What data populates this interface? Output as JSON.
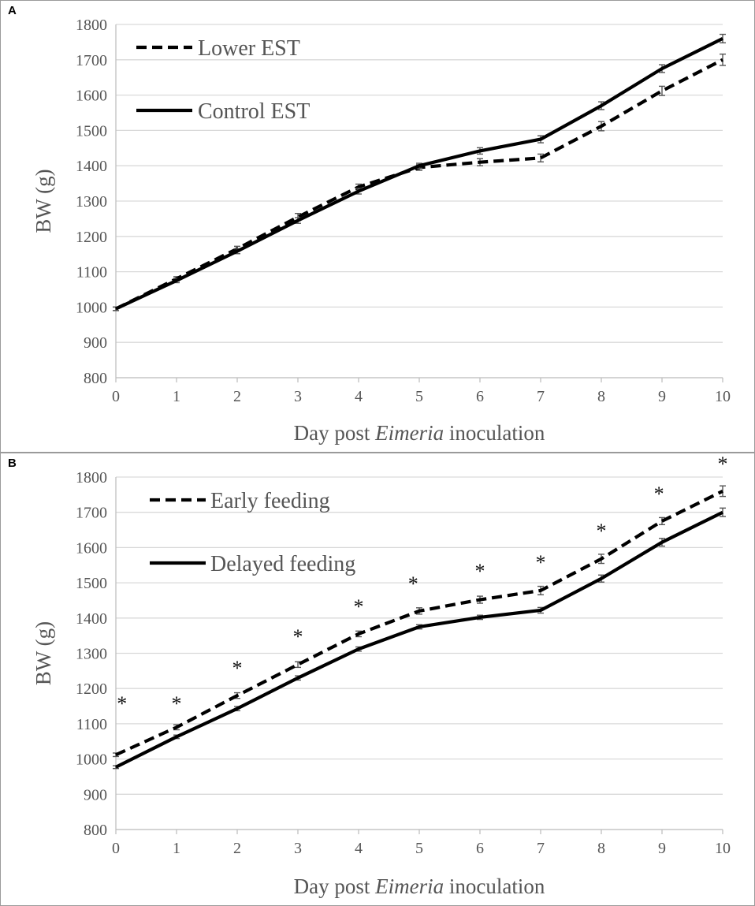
{
  "figure": {
    "colors": {
      "line": "#000000",
      "grid": "#d9d9d9",
      "text": "#555555",
      "error_bar": "#555555"
    }
  },
  "chart_data": [
    {
      "id": "A",
      "type": "line",
      "panel_label": "A",
      "xlabel_pre": "Day post ",
      "xlabel_italic": "Eimeria",
      "xlabel_post": " inoculation",
      "ylabel": "BW (g)",
      "ylim": [
        800,
        1800
      ],
      "ytick_step": 100,
      "yticks": [
        "800",
        "900",
        "1000",
        "1100",
        "1200",
        "1300",
        "1400",
        "1500",
        "1600",
        "1700",
        "1800"
      ],
      "xticks": [
        "0",
        "1",
        "2",
        "3",
        "4",
        "5",
        "6",
        "7",
        "8",
        "9",
        "10"
      ],
      "x": [
        0,
        1,
        2,
        3,
        4,
        5,
        6,
        7,
        8,
        9,
        10
      ],
      "grid": true,
      "legend_position": "top-left",
      "series": [
        {
          "name": "Lower EST",
          "style": "dashed",
          "values": [
            995,
            1080,
            1165,
            1255,
            1340,
            1395,
            1410,
            1422,
            1512,
            1612,
            1700
          ],
          "errors": [
            5,
            6,
            7,
            10,
            8,
            8,
            10,
            11,
            13,
            13,
            16
          ]
        },
        {
          "name": "Control EST",
          "style": "solid",
          "values": [
            995,
            1075,
            1158,
            1245,
            1328,
            1400,
            1442,
            1475,
            1570,
            1675,
            1760
          ],
          "errors": [
            5,
            6,
            7,
            8,
            8,
            7,
            9,
            10,
            11,
            11,
            12
          ]
        }
      ],
      "annotations": []
    },
    {
      "id": "B",
      "type": "line",
      "panel_label": "B",
      "xlabel_pre": "Day post ",
      "xlabel_italic": "Eimeria",
      "xlabel_post": " inoculation",
      "ylabel": "BW (g)",
      "ylim": [
        800,
        1800
      ],
      "ytick_step": 100,
      "yticks": [
        "800",
        "900",
        "1000",
        "1100",
        "1200",
        "1300",
        "1400",
        "1500",
        "1600",
        "1700",
        "1800"
      ],
      "xticks": [
        "0",
        "1",
        "2",
        "3",
        "4",
        "5",
        "6",
        "7",
        "8",
        "9",
        "10"
      ],
      "x": [
        0,
        1,
        2,
        3,
        4,
        5,
        6,
        7,
        8,
        9,
        10
      ],
      "grid": true,
      "legend_position": "top-left",
      "series": [
        {
          "name": "Early feeding",
          "style": "dashed",
          "values": [
            1012,
            1090,
            1180,
            1268,
            1355,
            1420,
            1452,
            1478,
            1568,
            1675,
            1760
          ],
          "errors": [
            5,
            7,
            8,
            8,
            8,
            9,
            10,
            12,
            13,
            10,
            15
          ]
        },
        {
          "name": "Delayed feeding",
          "style": "solid",
          "values": [
            977,
            1063,
            1143,
            1230,
            1312,
            1375,
            1402,
            1422,
            1512,
            1615,
            1700
          ],
          "errors": [
            4,
            5,
            6,
            6,
            6,
            6,
            6,
            8,
            10,
            11,
            12
          ]
        }
      ],
      "annotations": [
        {
          "text": "*",
          "x": 0.1,
          "y": 1165
        },
        {
          "text": "*",
          "x": 1.0,
          "y": 1165
        },
        {
          "text": "*",
          "x": 2.0,
          "y": 1265
        },
        {
          "text": "*",
          "x": 3.0,
          "y": 1355
        },
        {
          "text": "*",
          "x": 4.0,
          "y": 1440
        },
        {
          "text": "*",
          "x": 4.9,
          "y": 1505
        },
        {
          "text": "*",
          "x": 6.0,
          "y": 1540
        },
        {
          "text": "*",
          "x": 7.0,
          "y": 1565
        },
        {
          "text": "*",
          "x": 8.0,
          "y": 1655
        },
        {
          "text": "*",
          "x": 8.95,
          "y": 1760
        },
        {
          "text": "*",
          "x": 10.0,
          "y": 1845
        }
      ]
    }
  ]
}
